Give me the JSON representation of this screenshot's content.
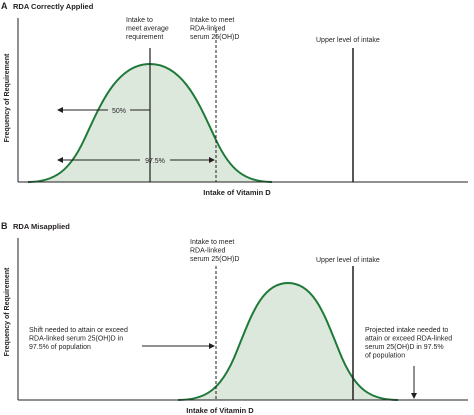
{
  "panel_a": {
    "letter": "A",
    "title": "RDA Correctly Applied",
    "y_axis_label": "Frequency of Requirement",
    "x_axis_label": "Intake of Vitamin D",
    "ear_label": [
      "Intake to",
      "meet average",
      "requirement"
    ],
    "rda_label": [
      "Intake to meet",
      "RDA-linked",
      "serum 25(OH)D"
    ],
    "ul_label": "Upper level of intake",
    "pct_50": "50%",
    "pct_975": "97.5%"
  },
  "panel_b": {
    "letter": "B",
    "title": "RDA Misapplied",
    "y_axis_label": "Frequency of Requirement",
    "x_axis_label": "Intake of Vitamin D",
    "rda_label": [
      "Intake to meet",
      "RDA-linked",
      "serum 25(OH)D"
    ],
    "ul_label": "Upper level of intake",
    "shift_label": [
      "Shift needed to attain or exceed",
      "RDA-linked serum 25(OH)D in",
      "97.5% of population"
    ],
    "projected_label": [
      "Projected intake needed to",
      "attain or exceed RDA-linked",
      "serum 25(OH)D in 97.5%",
      "of population"
    ]
  },
  "colors": {
    "curve": "#1f7a3a",
    "fill": "#dde8dd",
    "ink": "#231f20"
  }
}
